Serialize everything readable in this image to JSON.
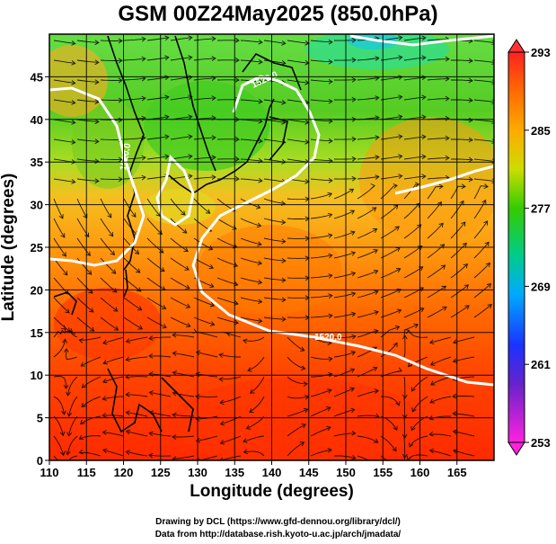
{
  "title": "GSM 00Z24May2025 (850.0hPa)",
  "xlabel": "Longitude (degrees)",
  "ylabel": "Latitude  (degrees)",
  "x_ticks": [
    "110",
    "115",
    "120",
    "125",
    "130",
    "135",
    "140",
    "145",
    "150",
    "155",
    "160",
    "165"
  ],
  "y_ticks": [
    "0",
    "5",
    "10",
    "15",
    "20",
    "25",
    "30",
    "35",
    "40",
    "45"
  ],
  "colorbar_ticks": [
    "293",
    "285",
    "277",
    "269",
    "261",
    "253"
  ],
  "contour_labels": [
    "1520.0",
    "1520.0",
    "1520.0"
  ],
  "credit_line1": "Drawing by DCL (https://www.gfd-dennou.org/library/dcl/)",
  "credit_line2": "Data from http://database.rish.kyoto-u.ac.jp/arch/jmadata/",
  "colors": {
    "warm": "#ff2a00",
    "orange": "#ff9a10",
    "yellow": "#e6e600",
    "green": "#33cc00",
    "cyan": "#00d6d6",
    "blue": "#0a2aff",
    "magenta": "#ff10d8",
    "contour": "#ffffff"
  }
}
